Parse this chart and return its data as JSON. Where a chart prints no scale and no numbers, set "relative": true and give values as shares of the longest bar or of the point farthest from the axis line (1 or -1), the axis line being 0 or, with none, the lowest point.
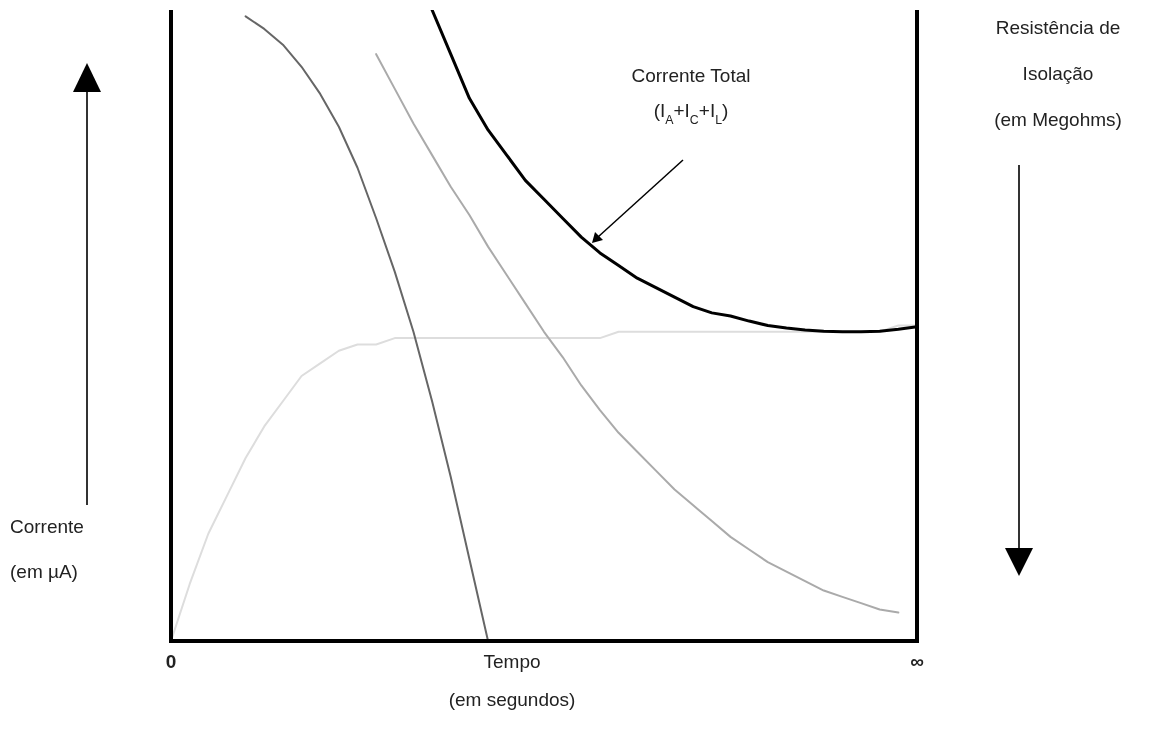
{
  "chart_data": {
    "type": "line",
    "relative": true,
    "xlabel": "Tempo\n(em segundos)",
    "ylabel": "Corrente\n(em µA)",
    "y2label": "Resistência de\nIsolação\n(em Megohms)",
    "marker": "none",
    "line_style": "solid",
    "categories": [
      "0",
      null,
      null,
      null,
      null,
      null,
      null,
      null,
      null,
      null,
      null,
      null,
      null,
      null,
      null,
      null,
      null,
      null,
      null,
      null,
      null,
      null,
      null,
      null,
      null,
      null,
      null,
      null,
      null,
      null,
      null,
      null,
      null,
      null,
      null,
      null,
      null,
      null,
      null,
      null,
      "∞"
    ],
    "series": [
      {
        "color": "#dddddd",
        "values": [
          0,
          0.09,
          0.17,
          0.23,
          0.29,
          0.34,
          0.38,
          0.42,
          0.44,
          0.46,
          0.47,
          0.47,
          0.48,
          0.48,
          0.48,
          0.48,
          0.48,
          0.48,
          0.48,
          0.48,
          0.48,
          0.48,
          0.48,
          0.48,
          0.49,
          0.49,
          0.49,
          0.49,
          0.49,
          0.49,
          0.49,
          0.49,
          0.49,
          0.49,
          0.49,
          0.49,
          0.49,
          0.49,
          0.49,
          0.5,
          0.5
        ]
      },
      {
        "color": "#666666",
        "values": [
          null,
          null,
          null,
          null,
          0.99,
          0.97,
          0.945,
          0.91,
          0.867,
          0.815,
          0.75,
          0.67,
          0.585,
          0.49,
          0.38,
          0.26,
          0.13,
          0,
          null,
          null,
          null,
          null,
          null,
          null,
          null,
          null,
          null,
          null,
          null,
          null,
          null,
          null,
          null,
          null,
          null,
          null,
          null,
          null,
          null,
          null,
          null
        ]
      },
      {
        "color": "#aaaaaa",
        "values": [
          null,
          null,
          null,
          null,
          null,
          null,
          null,
          null,
          null,
          null,
          null,
          0.93,
          0.875,
          0.82,
          0.77,
          0.72,
          0.675,
          0.625,
          0.58,
          0.535,
          0.49,
          0.45,
          0.405,
          0.366,
          0.33,
          0.3,
          0.27,
          0.24,
          0.215,
          0.19,
          0.165,
          0.145,
          0.125,
          0.11,
          0.095,
          0.08,
          0.07,
          0.06,
          0.05,
          0.045,
          null
        ]
      },
      {
        "color": "#000000",
        "values": [
          null,
          null,
          null,
          null,
          null,
          null,
          null,
          null,
          null,
          null,
          null,
          null,
          null,
          null,
          1,
          0.93,
          0.86,
          0.81,
          0.77,
          0.73,
          0.7,
          0.67,
          0.64,
          0.615,
          0.595,
          0.575,
          0.56,
          0.545,
          0.53,
          0.52,
          0.515,
          0.507,
          0.5,
          0.496,
          0.493,
          0.491,
          0.49,
          0.49,
          0.491,
          0.494,
          0.498
        ]
      }
    ],
    "annotations": [
      "Corrente Total\n(I$_{A}$+I$_{C}$+I$_{L}$)"
    ]
  }
}
